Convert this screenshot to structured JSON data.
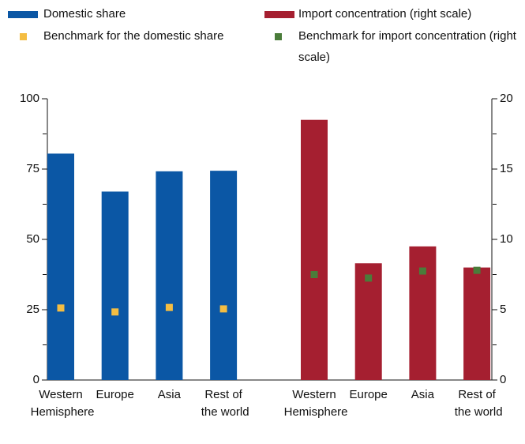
{
  "chart_data": {
    "type": "bar",
    "categories": [
      "Western Hemisphere",
      "Europe",
      "Asia",
      "Rest of the world"
    ],
    "series": [
      {
        "name": "Domestic share",
        "color": "#0b57a5",
        "values": [
          80.5,
          67,
          74.2,
          74.4
        ]
      },
      {
        "name": "Benchmark for the domestic share",
        "color": "#f4bd42",
        "kind": "marker",
        "values": [
          25.6,
          24.2,
          25.8,
          25.3
        ]
      },
      {
        "name": "Import concentration (right scale)",
        "color": "#a51f30",
        "axis": "y2",
        "values": [
          18.5,
          8.3,
          9.5,
          8.0
        ]
      },
      {
        "name": "Benchmark for import concentration (right scale)",
        "color": "#4a7c3a",
        "kind": "marker",
        "axis": "y2",
        "values": [
          7.5,
          7.25,
          7.75,
          7.8
        ]
      }
    ],
    "ylim": [
      0,
      100
    ],
    "yticks": [
      0,
      25,
      50,
      75,
      100
    ],
    "yminorticks": [
      12.5,
      37.5,
      62.5,
      87.5
    ],
    "y2lim": [
      0,
      20
    ],
    "y2ticks": [
      0,
      5,
      10,
      15,
      20
    ],
    "y2minorticks": [
      2.5,
      7.5,
      12.5,
      17.5
    ]
  }
}
